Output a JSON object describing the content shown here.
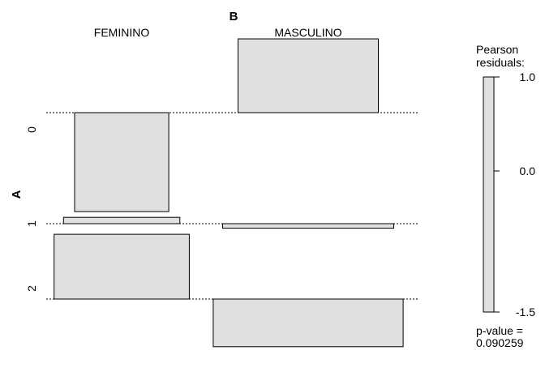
{
  "chart_data": {
    "type": "association-plot",
    "col_variable": "B",
    "row_variable": "A",
    "columns": [
      "FEMININO",
      "MASCULINO"
    ],
    "rows": [
      "0",
      "1",
      "2"
    ],
    "residuals": [
      [
        -1.1,
        0.82
      ],
      [
        0.07,
        -0.05
      ],
      [
        0.72,
        -0.53
      ]
    ],
    "legend": {
      "title_line1": "Pearson",
      "title_line2": "residuals:",
      "ticks": [
        "1.0",
        "0.0",
        "-1.5"
      ],
      "tick_values": [
        1.0,
        0.0,
        -1.5
      ],
      "range": [
        -1.5,
        1.0
      ]
    },
    "p_value_label": "p-value =",
    "p_value": "0.090259",
    "fill_color": "#e0e0e0"
  }
}
